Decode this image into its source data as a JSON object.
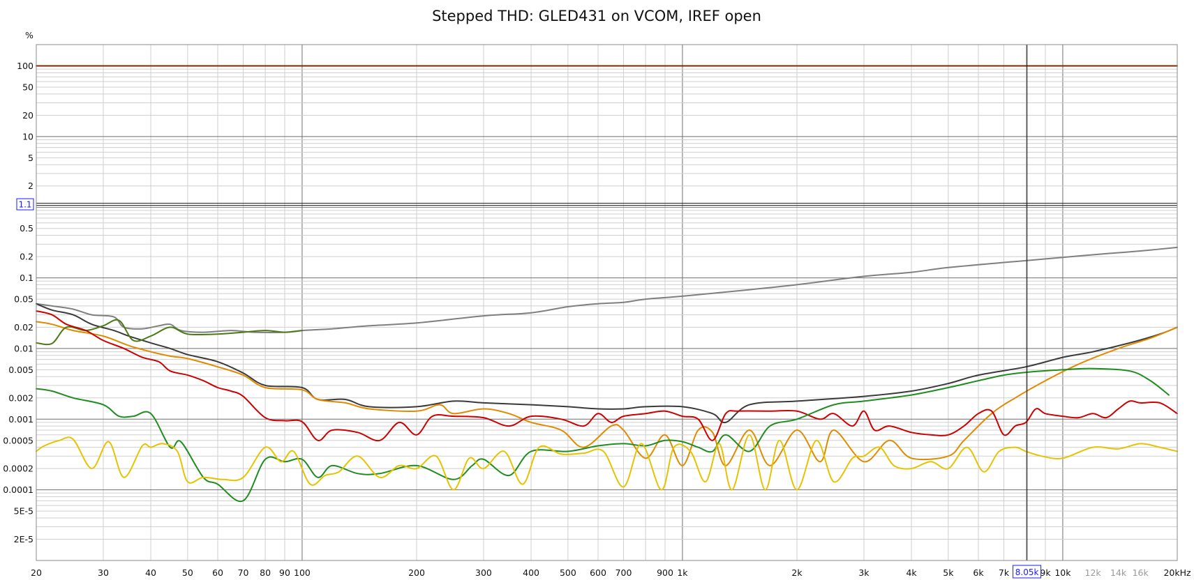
{
  "chart_data": {
    "type": "line",
    "title": "Stepped THD: GLED431 on VCOM, IREF open",
    "xlabel": "",
    "ylabel": "%",
    "x_scale": "log",
    "y_scale": "log",
    "xlim": [
      20,
      20000
    ],
    "ylim": [
      1e-05,
      200
    ],
    "grid": true,
    "legend": "none",
    "x_ticks": [
      {
        "v": 20,
        "label": "20"
      },
      {
        "v": 30,
        "label": "30"
      },
      {
        "v": 40,
        "label": "40"
      },
      {
        "v": 50,
        "label": "50"
      },
      {
        "v": 60,
        "label": "60"
      },
      {
        "v": 70,
        "label": "70"
      },
      {
        "v": 80,
        "label": "80"
      },
      {
        "v": 90,
        "label": "90"
      },
      {
        "v": 100,
        "label": "100"
      },
      {
        "v": 200,
        "label": "200"
      },
      {
        "v": 300,
        "label": "300"
      },
      {
        "v": 400,
        "label": "400"
      },
      {
        "v": 500,
        "label": "500"
      },
      {
        "v": 600,
        "label": "600"
      },
      {
        "v": 700,
        "label": "700"
      },
      {
        "v": 900,
        "label": "900"
      },
      {
        "v": 1000,
        "label": "1k"
      },
      {
        "v": 2000,
        "label": "2k"
      },
      {
        "v": 3000,
        "label": "3k"
      },
      {
        "v": 4000,
        "label": "4k"
      },
      {
        "v": 5000,
        "label": "5k"
      },
      {
        "v": 6000,
        "label": "6k"
      },
      {
        "v": 7000,
        "label": "7k"
      },
      {
        "v": 9000,
        "label": "9k"
      },
      {
        "v": 10000,
        "label": "10k"
      },
      {
        "v": 12000,
        "label": "12k",
        "faded": true
      },
      {
        "v": 14000,
        "label": "14k",
        "faded": true
      },
      {
        "v": 16000,
        "label": "16k",
        "faded": true
      },
      {
        "v": 20000,
        "label": "20kHz"
      }
    ],
    "y_ticks": [
      {
        "v": 100,
        "label": "100"
      },
      {
        "v": 50,
        "label": "50"
      },
      {
        "v": 20,
        "label": "20"
      },
      {
        "v": 10,
        "label": "10"
      },
      {
        "v": 5,
        "label": "5"
      },
      {
        "v": 2,
        "label": "2"
      },
      {
        "v": 0.5,
        "label": "0.5"
      },
      {
        "v": 0.2,
        "label": "0.2"
      },
      {
        "v": 0.1,
        "label": "0.1"
      },
      {
        "v": 0.05,
        "label": "0.05"
      },
      {
        "v": 0.02,
        "label": "0.02"
      },
      {
        "v": 0.01,
        "label": "0.01"
      },
      {
        "v": 0.005,
        "label": "0.005"
      },
      {
        "v": 0.002,
        "label": "0.002"
      },
      {
        "v": 0.001,
        "label": "0.001"
      },
      {
        "v": 0.0005,
        "label": "0.0005"
      },
      {
        "v": 0.0002,
        "label": "0.0002"
      },
      {
        "v": 0.0001,
        "label": "0.0001"
      },
      {
        "v": 5e-05,
        "label": "5E-5"
      },
      {
        "v": 2e-05,
        "label": "2E-5"
      }
    ],
    "cursor": {
      "x": 8050,
      "x_label": "8.05k",
      "y": 1.1,
      "y_label": "1.1"
    },
    "series": [
      {
        "color": "#8b2500",
        "x": [
          20,
          20000
        ],
        "y": [
          100,
          100
        ]
      },
      {
        "color": "#7f7f7f",
        "x": [
          20,
          22,
          25,
          28,
          32,
          34,
          38,
          42,
          45,
          48,
          55,
          65,
          75,
          90,
          100,
          120,
          150,
          200,
          300,
          400,
          500,
          600,
          700,
          800,
          1000,
          1500,
          2000,
          3000,
          4000,
          5000,
          7000,
          8000,
          10000,
          13000,
          16000,
          20000
        ],
        "y": [
          0.043,
          0.04,
          0.036,
          0.03,
          0.028,
          0.02,
          0.019,
          0.021,
          0.022,
          0.018,
          0.017,
          0.018,
          0.017,
          0.017,
          0.018,
          0.019,
          0.021,
          0.023,
          0.029,
          0.032,
          0.039,
          0.043,
          0.045,
          0.05,
          0.055,
          0.068,
          0.08,
          0.105,
          0.12,
          0.14,
          0.165,
          0.175,
          0.195,
          0.22,
          0.24,
          0.27
        ]
      },
      {
        "color": "#3a3a3a",
        "x": [
          20,
          22,
          25,
          28,
          32,
          35,
          40,
          45,
          50,
          60,
          70,
          80,
          100,
          110,
          130,
          150,
          200,
          250,
          300,
          400,
          500,
          600,
          700,
          800,
          1000,
          1200,
          1300,
          1500,
          2000,
          3000,
          4000,
          5000,
          6000,
          8000,
          10000,
          12000,
          15000,
          18000,
          20000
        ],
        "y": [
          0.043,
          0.035,
          0.03,
          0.022,
          0.018,
          0.015,
          0.012,
          0.01,
          0.0082,
          0.0065,
          0.0045,
          0.003,
          0.0028,
          0.0019,
          0.0019,
          0.0015,
          0.0015,
          0.0018,
          0.0017,
          0.0016,
          0.0015,
          0.0014,
          0.0014,
          0.0015,
          0.0015,
          0.0012,
          0.0009,
          0.0016,
          0.0018,
          0.0021,
          0.0025,
          0.0032,
          0.0042,
          0.0055,
          0.0075,
          0.009,
          0.012,
          0.016,
          0.02
        ]
      },
      {
        "color": "#e08a00",
        "x": [
          20,
          22,
          25,
          30,
          35,
          40,
          45,
          50,
          60,
          70,
          80,
          100,
          110,
          130,
          150,
          200,
          230,
          250,
          300,
          350,
          400,
          480,
          550,
          650,
          700,
          800,
          900,
          1000,
          1100,
          1200,
          1300,
          1500,
          1700,
          2000,
          2300,
          2500,
          3000,
          3500,
          4000,
          5000,
          5500,
          6500,
          7500,
          9000,
          11000,
          14000,
          17000,
          20000
        ],
        "y": [
          0.024,
          0.022,
          0.018,
          0.015,
          0.011,
          0.009,
          0.0078,
          0.0072,
          0.0055,
          0.0042,
          0.0028,
          0.0026,
          0.0019,
          0.0017,
          0.0014,
          0.0013,
          0.0016,
          0.0012,
          0.0014,
          0.0012,
          0.0009,
          0.0007,
          0.0004,
          0.0008,
          0.0007,
          0.00028,
          0.0006,
          0.00022,
          0.0007,
          0.00065,
          0.00022,
          0.0007,
          0.00022,
          0.0007,
          0.00025,
          0.0007,
          0.00025,
          0.0005,
          0.00028,
          0.0003,
          0.0005,
          0.0012,
          0.002,
          0.0035,
          0.006,
          0.01,
          0.014,
          0.02
        ]
      },
      {
        "color": "#4a7a12",
        "x": [
          20,
          22,
          24,
          27,
          30,
          33,
          36,
          40,
          45,
          50,
          60,
          70,
          80,
          90,
          100
        ],
        "y": [
          0.012,
          0.0118,
          0.02,
          0.018,
          0.021,
          0.025,
          0.013,
          0.015,
          0.02,
          0.016,
          0.016,
          0.017,
          0.018,
          0.017,
          0.018
        ]
      },
      {
        "color": "#cc0000",
        "x": [
          20,
          22,
          24,
          27,
          30,
          34,
          38,
          42,
          45,
          50,
          55,
          60,
          65,
          70,
          80,
          90,
          100,
          110,
          120,
          140,
          160,
          180,
          200,
          220,
          250,
          300,
          350,
          400,
          480,
          550,
          600,
          650,
          700,
          800,
          900,
          1000,
          1100,
          1200,
          1300,
          1400,
          1700,
          2000,
          2300,
          2500,
          2800,
          3000,
          3200,
          3500,
          4000,
          4500,
          5000,
          5500,
          6000,
          6500,
          7000,
          7500,
          8000,
          8500,
          9000,
          10000,
          11000,
          12000,
          13000,
          14000,
          15000,
          16000,
          18000,
          20000
        ],
        "y": [
          0.034,
          0.03,
          0.022,
          0.018,
          0.013,
          0.01,
          0.0075,
          0.0065,
          0.0048,
          0.0042,
          0.0035,
          0.0028,
          0.0025,
          0.0021,
          0.00105,
          0.00095,
          0.00092,
          0.0005,
          0.0007,
          0.00065,
          0.0005,
          0.0009,
          0.0006,
          0.0011,
          0.0011,
          0.00105,
          0.0008,
          0.0011,
          0.001,
          0.0008,
          0.0012,
          0.0009,
          0.0011,
          0.0012,
          0.0013,
          0.0011,
          0.001,
          0.0005,
          0.0012,
          0.0013,
          0.0013,
          0.0013,
          0.001,
          0.0012,
          0.0008,
          0.0013,
          0.0007,
          0.0008,
          0.00065,
          0.0006,
          0.0006,
          0.0008,
          0.0012,
          0.0013,
          0.0006,
          0.0008,
          0.0009,
          0.0014,
          0.0012,
          0.0011,
          0.00105,
          0.0012,
          0.00105,
          0.0014,
          0.0018,
          0.0017,
          0.0017,
          0.0012
        ]
      },
      {
        "color": "#1f8c1f",
        "x": [
          20,
          22,
          25,
          30,
          33,
          36,
          40,
          45,
          48,
          55,
          60,
          70,
          80,
          90,
          100,
          110,
          120,
          140,
          160,
          200,
          250,
          280,
          300,
          350,
          400,
          500,
          600,
          700,
          800,
          900,
          1000,
          1100,
          1200,
          1300,
          1500,
          1700,
          2000,
          2500,
          3000,
          4000,
          5000,
          6000,
          7000,
          8000,
          10000,
          12000,
          15000,
          17000,
          19000
        ],
        "y": [
          0.0027,
          0.0025,
          0.002,
          0.0016,
          0.0011,
          0.0011,
          0.0012,
          0.0004,
          0.00048,
          0.00015,
          0.00012,
          7e-05,
          0.00027,
          0.00025,
          0.00027,
          0.00015,
          0.00022,
          0.00017,
          0.00017,
          0.00022,
          0.00014,
          0.00022,
          0.00027,
          0.00016,
          0.00035,
          0.00035,
          0.00042,
          0.00045,
          0.00042,
          0.0005,
          0.00048,
          0.0004,
          0.00035,
          0.0006,
          0.00035,
          0.0008,
          0.001,
          0.0016,
          0.0018,
          0.0022,
          0.0028,
          0.0035,
          0.0042,
          0.0046,
          0.005,
          0.0052,
          0.0048,
          0.0035,
          0.0022
        ]
      },
      {
        "color": "#e6c200",
        "x": [
          20,
          21,
          23,
          25,
          28,
          31,
          34,
          38,
          40,
          43,
          47,
          50,
          55,
          62,
          70,
          80,
          88,
          95,
          105,
          115,
          125,
          140,
          160,
          180,
          200,
          225,
          250,
          275,
          300,
          340,
          380,
          420,
          480,
          550,
          620,
          700,
          780,
          880,
          950,
          1050,
          1150,
          1250,
          1350,
          1500,
          1650,
          1800,
          2000,
          2250,
          2500,
          2800,
          3000,
          3300,
          3600,
          4000,
          4500,
          5000,
          5600,
          6200,
          6800,
          7500,
          8000,
          8800,
          10000,
          12000,
          14000,
          16000,
          18000,
          20000
        ],
        "y": [
          0.00035,
          0.00042,
          0.0005,
          0.00052,
          0.0002,
          0.00048,
          0.00015,
          0.00042,
          0.0004,
          0.00045,
          0.00035,
          0.00013,
          0.00015,
          0.00014,
          0.00015,
          0.0004,
          0.00025,
          0.00035,
          0.00012,
          0.00016,
          0.00018,
          0.0003,
          0.00015,
          0.00022,
          0.0002,
          0.0003,
          0.0001,
          0.00028,
          0.0002,
          0.00035,
          0.00012,
          0.0004,
          0.00032,
          0.00033,
          0.00035,
          0.00011,
          0.00045,
          0.0001,
          0.0004,
          0.00035,
          0.00013,
          0.00045,
          0.0001,
          0.0006,
          0.0001,
          0.0005,
          0.0001,
          0.0005,
          0.00013,
          0.00028,
          0.0003,
          0.0004,
          0.00022,
          0.0002,
          0.00025,
          0.0002,
          0.0004,
          0.00018,
          0.00035,
          0.0004,
          0.00035,
          0.0003,
          0.00028,
          0.0004,
          0.00038,
          0.00045,
          0.0004,
          0.00035
        ]
      }
    ]
  }
}
